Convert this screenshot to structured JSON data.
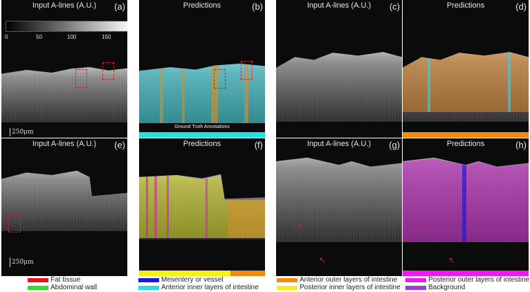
{
  "panels": [
    {
      "id": "a",
      "title": "Input A-lines (A.U.)",
      "label": "(a)"
    },
    {
      "id": "b",
      "title": "Predictions",
      "label": "(b)",
      "gt_text": "Ground Truth Annotations"
    },
    {
      "id": "c",
      "title": "Input A-lines (A.U.)",
      "label": "(c)"
    },
    {
      "id": "d",
      "title": "Predictions",
      "label": "(d)"
    },
    {
      "id": "e",
      "title": "Input A-lines (A.U.)",
      "label": "(e)"
    },
    {
      "id": "f",
      "title": "Predictions",
      "label": "(f)"
    },
    {
      "id": "g",
      "title": "Input A-lines (A.U.)",
      "label": "(g)"
    },
    {
      "id": "h",
      "title": "Predictions",
      "label": "(h)"
    }
  ],
  "colorbar": {
    "ticks": [
      "0",
      "50",
      "100",
      "150"
    ]
  },
  "scale_bar": "250μm",
  "legend": [
    {
      "label": "Fat tissue",
      "color": "#e8101a"
    },
    {
      "label": "Abdominal wall",
      "color": "#2ee02e"
    },
    {
      "label": "Mesentery or vessel",
      "color": "#1a1ae0"
    },
    {
      "label": "Anterior inner layers of intestine",
      "color": "#22e0e8"
    },
    {
      "label": "Anterior outer layers of intestine",
      "color": "#f08a10"
    },
    {
      "label": "Posterior inner layers of intestine",
      "color": "#f4f01a"
    },
    {
      "label": "Posterior outer layers of intestine",
      "color": "#f01af0"
    },
    {
      "label": "Background",
      "color": "#9a3ae0"
    }
  ],
  "colors": {
    "cyan": "#35d6e0",
    "orange": "#e08a2c",
    "yellow": "#d8d820",
    "magenta": "#d020d0",
    "blue": "#2020d0",
    "red": "#d32222"
  }
}
